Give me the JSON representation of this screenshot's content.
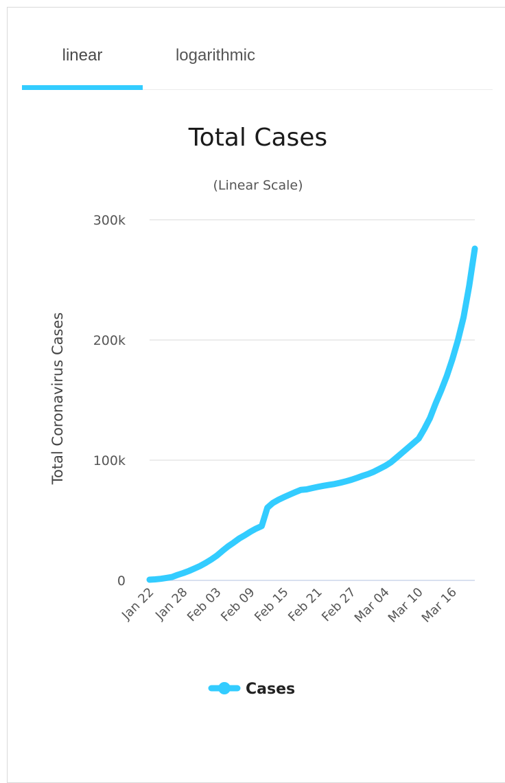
{
  "tabs": [
    {
      "label": "linear",
      "active": true
    },
    {
      "label": "logarithmic",
      "active": false
    }
  ],
  "colors": {
    "accent": "#33ccff",
    "grid": "#e6e6e6",
    "axis": "#ccd6eb"
  },
  "chart_data": {
    "type": "line",
    "title": "Total Cases",
    "subtitle": "(Linear Scale)",
    "ylabel": "Total Coronavirus Cases",
    "xlabel": "",
    "ylim": [
      0,
      300000
    ],
    "yticks": [
      {
        "value": 0,
        "label": "0"
      },
      {
        "value": 100000,
        "label": "100k"
      },
      {
        "value": 200000,
        "label": "200k"
      },
      {
        "value": 300000,
        "label": "300k"
      }
    ],
    "grid": true,
    "legend_position": "bottom",
    "x": [
      "Jan 22",
      "Jan 23",
      "Jan 24",
      "Jan 25",
      "Jan 26",
      "Jan 27",
      "Jan 28",
      "Jan 29",
      "Jan 30",
      "Jan 31",
      "Feb 01",
      "Feb 02",
      "Feb 03",
      "Feb 04",
      "Feb 05",
      "Feb 06",
      "Feb 07",
      "Feb 08",
      "Feb 09",
      "Feb 10",
      "Feb 11",
      "Feb 12",
      "Feb 13",
      "Feb 14",
      "Feb 15",
      "Feb 16",
      "Feb 17",
      "Feb 18",
      "Feb 19",
      "Feb 20",
      "Feb 21",
      "Feb 22",
      "Feb 23",
      "Feb 24",
      "Feb 25",
      "Feb 26",
      "Feb 27",
      "Feb 28",
      "Feb 29",
      "Mar 01",
      "Mar 02",
      "Mar 03",
      "Mar 04",
      "Mar 05",
      "Mar 06",
      "Mar 07",
      "Mar 08",
      "Mar 09",
      "Mar 10",
      "Mar 11",
      "Mar 12",
      "Mar 13",
      "Mar 14",
      "Mar 15",
      "Mar 16",
      "Mar 17",
      "Mar 18",
      "Mar 19",
      "Mar 20"
    ],
    "xticks": [
      "Jan 22",
      "Jan 28",
      "Feb 03",
      "Feb 09",
      "Feb 15",
      "Feb 21",
      "Feb 27",
      "Mar 04",
      "Mar 10",
      "Mar 16"
    ],
    "series": [
      {
        "name": "Cases",
        "color": "#33ccff",
        "values": [
          580,
          845,
          1320,
          2010,
          2800,
          4580,
          6070,
          7820,
          9830,
          11950,
          14550,
          17390,
          20630,
          24550,
          28280,
          31480,
          34890,
          37560,
          40550,
          43100,
          45170,
          60400,
          64500,
          67100,
          69300,
          71400,
          73400,
          75300,
          75700,
          76800,
          77800,
          78700,
          79500,
          80200,
          81200,
          82400,
          83700,
          85300,
          87000,
          88500,
          90400,
          92800,
          95200,
          98100,
          102000,
          106000,
          110000,
          114000,
          118000,
          126000,
          135000,
          147000,
          158000,
          170000,
          184000,
          200000,
          219000,
          245000,
          276000
        ]
      }
    ]
  }
}
